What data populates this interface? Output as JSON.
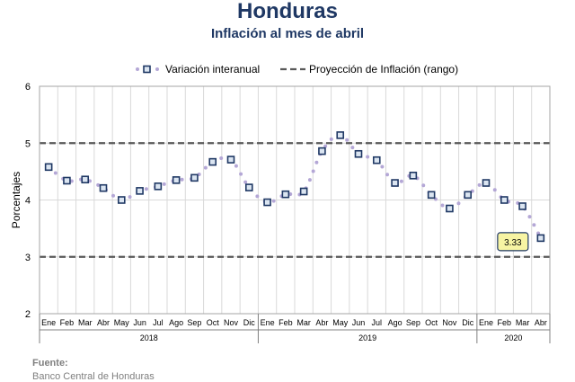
{
  "header": {
    "title": "Honduras",
    "subtitle": "Inflación al mes de abril"
  },
  "footer": {
    "source_label": "Fuente:",
    "source_text": "Banco Central de Honduras"
  },
  "colors": {
    "title": "#1f3864",
    "marker_edge": "#1f3864",
    "marker_fill": "#dbe5f1",
    "dots": "#b4a7d6",
    "range_lines": "#595959",
    "callout_fill": "#f7f4a3",
    "grid": "#d9d9d9"
  },
  "chart_data": {
    "type": "line",
    "title": "Inflación al mes de abril",
    "xlabel": "",
    "ylabel": "Porcentajes",
    "ylim": [
      2,
      6
    ],
    "yticks": [
      2,
      3,
      4,
      5,
      6
    ],
    "grid": true,
    "legend_position": "top",
    "categories": [
      "Ene",
      "Feb",
      "Mar",
      "Abr",
      "May",
      "Jun",
      "Jul",
      "Ago",
      "Sep",
      "Oct",
      "Nov",
      "Dic",
      "Ene",
      "Feb",
      "Mar",
      "Abr",
      "May",
      "Jun",
      "Jul",
      "Ago",
      "Sep",
      "Oct",
      "Nov",
      "Dic",
      "Ene",
      "Feb",
      "Mar",
      "Abr"
    ],
    "year_groups": [
      {
        "label": "2018",
        "count": 12
      },
      {
        "label": "2019",
        "count": 12
      },
      {
        "label": "2020",
        "count": 4
      }
    ],
    "series": [
      {
        "name": "Variación interanual",
        "style": "dotted-with-square-markers",
        "values": [
          4.58,
          4.34,
          4.36,
          4.21,
          4.0,
          4.16,
          4.24,
          4.35,
          4.39,
          4.67,
          4.71,
          4.22,
          3.96,
          4.1,
          4.15,
          4.86,
          5.14,
          4.81,
          4.7,
          4.3,
          4.43,
          4.09,
          3.85,
          4.09,
          4.3,
          4.0,
          3.89,
          3.33
        ]
      },
      {
        "name": "Proyección de Inflación (rango)",
        "style": "dashed",
        "bounds": [
          3,
          5
        ]
      }
    ],
    "annotations": [
      {
        "category_index": 27,
        "text": "3.33"
      }
    ]
  }
}
